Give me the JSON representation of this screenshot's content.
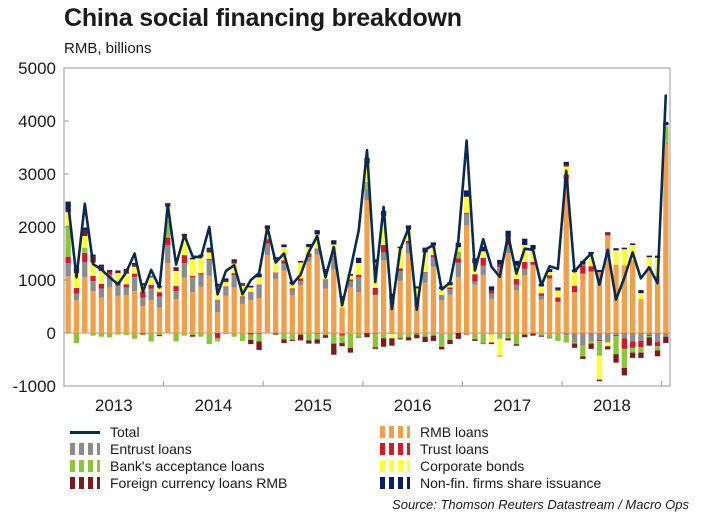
{
  "title": "China social financing breakdown",
  "subtitle": "RMB, billions",
  "source": "Source: Thomson Reuters Datastream / Macro Ops",
  "chart_data": {
    "type": "bar",
    "stacked": true,
    "ylim": [
      -1000,
      5000
    ],
    "yticks": [
      "5000",
      "4000",
      "3000",
      "2000",
      "1000",
      "0",
      "-1000"
    ],
    "year_labels": [
      "2013",
      "2014",
      "2015",
      "2016",
      "2017",
      "2018"
    ],
    "start_month": "2013-01",
    "months": 73,
    "series": [
      {
        "key": "rmb",
        "name": "RMB loans",
        "color": "#f0a04b",
        "values": [
          1070,
          620,
          1060,
          790,
          670,
          860,
          700,
          710,
          790,
          510,
          620,
          480,
          1320,
          640,
          1050,
          770,
          870,
          1080,
          390,
          700,
          860,
          550,
          620,
          660,
          1470,
          1020,
          1180,
          710,
          900,
          1350,
          1480,
          840,
          1200,
          480,
          860,
          770,
          2510,
          720,
          1370,
          550,
          990,
          1500,
          490,
          950,
          1250,
          620,
          720,
          1050,
          2030,
          910,
          1100,
          650,
          1150,
          1510,
          810,
          1090,
          1270,
          630,
          1030,
          580,
          2900,
          770,
          1120,
          1160,
          1150,
          1840,
          1290,
          1280,
          1380,
          640,
          1250,
          1080,
          3570
        ]
      },
      {
        "key": "entrust",
        "name": "Entrust loans",
        "color": "#8c8c8c",
        "values": [
          250,
          120,
          280,
          190,
          170,
          240,
          190,
          150,
          270,
          160,
          220,
          210,
          340,
          150,
          270,
          280,
          230,
          300,
          240,
          170,
          230,
          120,
          160,
          260,
          220,
          110,
          130,
          110,
          80,
          80,
          120,
          160,
          240,
          -20,
          120,
          280,
          220,
          -20,
          150,
          90,
          180,
          190,
          140,
          190,
          180,
          100,
          110,
          280,
          220,
          60,
          170,
          90,
          90,
          150,
          100,
          120,
          20,
          70,
          0,
          10,
          -40,
          -180,
          -240,
          -150,
          -130,
          -160,
          -40,
          -100,
          -160,
          -150,
          -40,
          -170,
          -70
        ]
      },
      {
        "key": "trust",
        "name": "Trust loans",
        "color": "#d01c2a",
        "values": [
          120,
          110,
          170,
          100,
          90,
          40,
          80,
          60,
          60,
          110,
          70,
          80,
          140,
          100,
          150,
          30,
          30,
          20,
          -100,
          10,
          40,
          20,
          -30,
          -10,
          80,
          10,
          60,
          20,
          50,
          70,
          -10,
          10,
          20,
          -30,
          30,
          50,
          -10,
          130,
          140,
          20,
          50,
          50,
          -10,
          10,
          40,
          0,
          30,
          80,
          20,
          140,
          150,
          60,
          50,
          150,
          110,
          130,
          50,
          50,
          60,
          80,
          90,
          120,
          160,
          100,
          -20,
          30,
          -20,
          -200,
          -120,
          -120,
          -20,
          -80,
          10
        ]
      },
      {
        "key": "acceptance",
        "name": "Bank's acceptance loans",
        "color": "#8cc43c",
        "values": [
          590,
          -190,
          100,
          -50,
          -70,
          -80,
          -30,
          -40,
          -110,
          -10,
          -160,
          -40,
          320,
          -160,
          -50,
          -40,
          -70,
          -210,
          -60,
          -20,
          -70,
          -150,
          -100,
          -150,
          20,
          -10,
          -120,
          -130,
          -30,
          -140,
          -110,
          -40,
          -200,
          -140,
          -280,
          -80,
          120,
          -250,
          -100,
          -20,
          -100,
          -80,
          -20,
          -70,
          -50,
          -260,
          -130,
          120,
          -20,
          -120,
          -200,
          -30,
          -110,
          -90,
          -210,
          -30,
          -10,
          -50,
          -90,
          -150,
          -140,
          -20,
          -200,
          -50,
          -280,
          -20,
          -340,
          -360,
          -90,
          -100,
          -20,
          -80,
          320
        ]
      },
      {
        "key": "bonds",
        "name": "Corporate bonds",
        "color": "#ffff3a",
        "values": [
          250,
          280,
          220,
          250,
          240,
          -20,
          160,
          200,
          130,
          120,
          140,
          90,
          260,
          280,
          350,
          310,
          310,
          120,
          240,
          80,
          180,
          200,
          80,
          130,
          170,
          250,
          250,
          80,
          300,
          120,
          260,
          140,
          210,
          190,
          70,
          220,
          350,
          480,
          550,
          -80,
          380,
          210,
          210,
          370,
          180,
          110,
          40,
          90,
          300,
          210,
          120,
          -150,
          -320,
          -10,
          250,
          320,
          240,
          130,
          60,
          130,
          150,
          260,
          10,
          230,
          -450,
          -70,
          270,
          300,
          280,
          110,
          180,
          340,
          20
        ]
      },
      {
        "key": "foreign",
        "name": "Foreign currency loans RMB",
        "color": "#7a1c1c",
        "values": [
          30,
          50,
          100,
          120,
          80,
          40,
          30,
          60,
          40,
          -20,
          0,
          -20,
          30,
          40,
          30,
          -30,
          20,
          50,
          30,
          40,
          40,
          30,
          -80,
          -160,
          30,
          -20,
          -70,
          -20,
          -110,
          -60,
          -80,
          -50,
          -210,
          -60,
          -90,
          -10,
          -70,
          -30,
          -160,
          -140,
          -20,
          -60,
          -70,
          -100,
          -100,
          -50,
          -80,
          -110,
          -10,
          -30,
          -10,
          -30,
          -10,
          -40,
          -30,
          -50,
          -40,
          -20,
          -10,
          30,
          40,
          -80,
          -50,
          -100,
          -30,
          -60,
          -160,
          -140,
          -100,
          -100,
          -160,
          -110,
          -120
        ]
      },
      {
        "key": "shares",
        "name": "Non-fin. firms share issuance",
        "color": "#0c1f5c",
        "values": [
          170,
          50,
          60,
          30,
          40,
          10,
          20,
          30,
          30,
          40,
          20,
          30,
          40,
          30,
          20,
          30,
          20,
          40,
          30,
          30,
          40,
          20,
          30,
          70,
          40,
          40,
          50,
          50,
          30,
          60,
          80,
          60,
          80,
          30,
          30,
          100,
          100,
          60,
          90,
          80,
          30,
          80,
          40,
          90,
          60,
          50,
          60,
          80,
          120,
          90,
          90,
          80,
          90,
          120,
          90,
          120,
          80,
          50,
          60,
          30,
          50,
          50,
          70,
          40,
          40,
          30,
          40,
          30,
          30,
          60,
          30,
          40,
          60
        ]
      }
    ],
    "total": {
      "key": "total",
      "name": "Total",
      "color": "#0b2a4e",
      "values": [
        2440,
        1050,
        2440,
        1300,
        1200,
        1050,
        920,
        1150,
        1500,
        780,
        1190,
        860,
        2410,
        1290,
        1850,
        1440,
        1430,
        2000,
        730,
        1170,
        1280,
        730,
        1000,
        1130,
        2000,
        1330,
        1500,
        920,
        1100,
        1530,
        1830,
        1050,
        1620,
        520,
        1200,
        1930,
        3450,
        960,
        2380,
        450,
        1580,
        1980,
        440,
        1570,
        1660,
        820,
        950,
        1740,
        3630,
        1180,
        1770,
        1250,
        1060,
        1850,
        1120,
        1590,
        1570,
        900,
        1260,
        1210,
        3060,
        1160,
        1340,
        1500,
        910,
        1570,
        630,
        1040,
        1520,
        1030,
        1240,
        940,
        4500
      ]
    }
  },
  "legend": [
    {
      "key": "total",
      "label": "Total",
      "kind": "line",
      "color": "#0b2a4e"
    },
    {
      "key": "rmb",
      "label": "RMB loans",
      "kind": "dash",
      "color": "#f0a04b"
    },
    {
      "key": "entrust",
      "label": "Entrust loans",
      "kind": "dash",
      "color": "#8c8c8c"
    },
    {
      "key": "trust",
      "label": "Trust loans",
      "kind": "dash",
      "color": "#d01c2a"
    },
    {
      "key": "acceptance",
      "label": "Bank's acceptance loans",
      "kind": "dash",
      "color": "#8cc43c"
    },
    {
      "key": "bonds",
      "label": "Corporate bonds",
      "kind": "dash",
      "color": "#ffff3a"
    },
    {
      "key": "foreign",
      "label": "Foreign currency loans RMB",
      "kind": "dash",
      "color": "#7a1c1c"
    },
    {
      "key": "shares",
      "label": "Non-fin. firms share issuance",
      "kind": "dash",
      "color": "#0c1f5c"
    }
  ]
}
